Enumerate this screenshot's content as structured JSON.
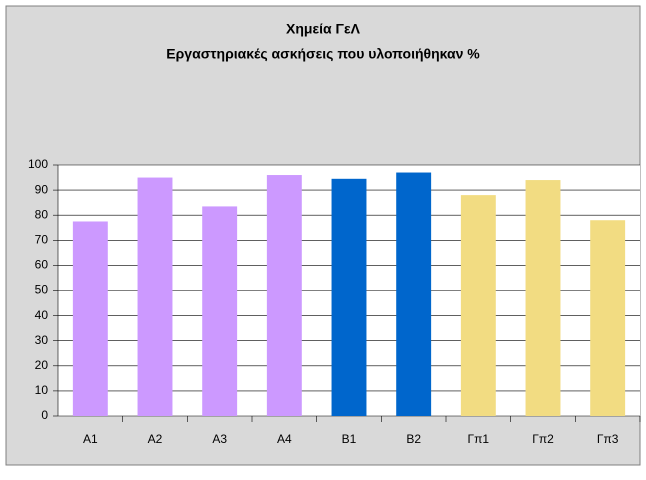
{
  "chart_data": {
    "type": "bar",
    "title": "Χημεία ΓεΛ",
    "subtitle": "Εργαστηριακές ασκήσεις που υλοποιήθηκαν %",
    "categories": [
      "A1",
      "A2",
      "A3",
      "A4",
      "B1",
      "B2",
      "Γπ1",
      "Γπ2",
      "Γπ3"
    ],
    "values": [
      77.5,
      95,
      83.5,
      96,
      94.5,
      97,
      88,
      94,
      78
    ],
    "colors": [
      "#cc99ff",
      "#cc99ff",
      "#cc99ff",
      "#cc99ff",
      "#0066cc",
      "#0066cc",
      "#f2dc82",
      "#f2dc82",
      "#f2dc82"
    ],
    "ylim": [
      0,
      100
    ],
    "yticks": [
      0,
      10,
      20,
      30,
      40,
      50,
      60,
      70,
      80,
      90,
      100
    ],
    "grid": true
  }
}
